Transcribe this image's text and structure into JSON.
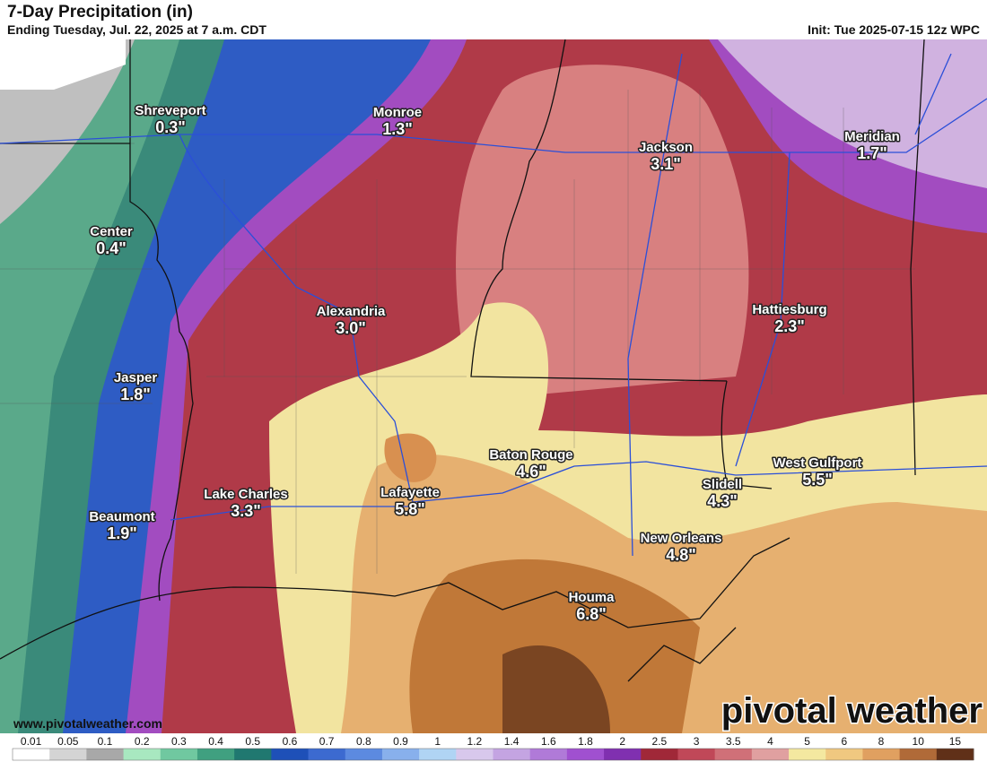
{
  "header": {
    "title": "7-Day Precipitation (in)",
    "subtitle": "Ending Tuesday, Jul. 22, 2025 at 7 a.m. CDT",
    "init": "Init: Tue 2025-07-15 12z WPC"
  },
  "cities": [
    {
      "name": "Shreveport",
      "value": "0.3\""
    },
    {
      "name": "Monroe",
      "value": "1.3\""
    },
    {
      "name": "Jackson",
      "value": "3.1\""
    },
    {
      "name": "Meridian",
      "value": "1.7\""
    },
    {
      "name": "Center",
      "value": "0.4\""
    },
    {
      "name": "Alexandria",
      "value": "3.0\""
    },
    {
      "name": "Hattiesburg",
      "value": "2.3\""
    },
    {
      "name": "Jasper",
      "value": "1.8\""
    },
    {
      "name": "Baton Rouge",
      "value": "4.6\""
    },
    {
      "name": "West Gulfport",
      "value": "5.5\""
    },
    {
      "name": "Lake Charles",
      "value": "3.3\""
    },
    {
      "name": "Lafayette",
      "value": "5.8\""
    },
    {
      "name": "Slidell",
      "value": "4.3\""
    },
    {
      "name": "Beaumont",
      "value": "1.9\""
    },
    {
      "name": "New Orleans",
      "value": "4.8\""
    },
    {
      "name": "Houma",
      "value": "6.8\""
    }
  ],
  "legend": {
    "labels": [
      "0.01",
      "0.05",
      "0.1",
      "0.2",
      "0.3",
      "0.4",
      "0.5",
      "0.6",
      "0.7",
      "0.8",
      "0.9",
      "1",
      "1.2",
      "1.4",
      "1.6",
      "1.8",
      "2",
      "2.5",
      "3",
      "3.5",
      "4",
      "5",
      "6",
      "8",
      "10",
      "15"
    ],
    "colors": [
      "#ffffff",
      "#d4d4d4",
      "#a8a8a8",
      "#a8e8c0",
      "#70c8a0",
      "#40a080",
      "#207870",
      "#1e50b8",
      "#3c6ad0",
      "#5c8ae0",
      "#88b0ec",
      "#b0d4f4",
      "#d8c8ec",
      "#c4a4e2",
      "#b07ad8",
      "#a050d0",
      "#8030b0",
      "#a02838",
      "#c04858",
      "#d07078",
      "#e0a0a0",
      "#f4e8a0",
      "#f0c880",
      "#e0a060",
      "#b06a38",
      "#603018"
    ]
  },
  "footer": {
    "url": "www.pivotalweather.com",
    "logo": "pivotal weather"
  }
}
